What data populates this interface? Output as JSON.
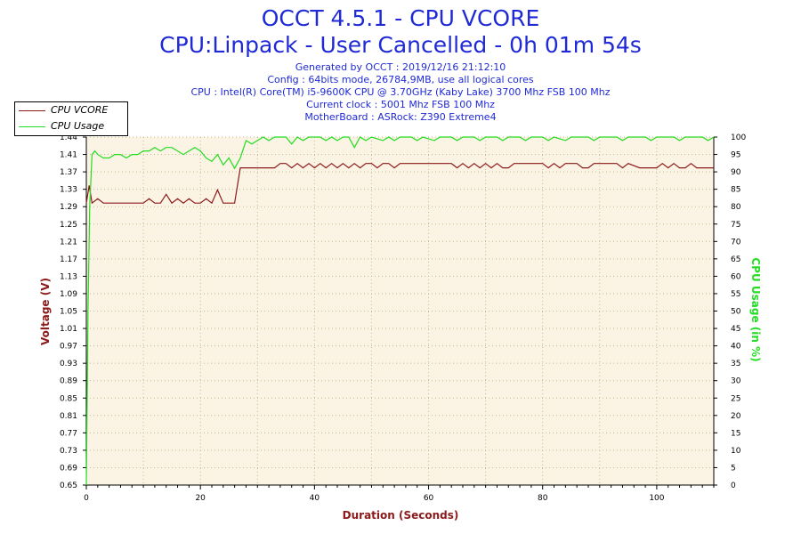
{
  "header": {
    "title": "OCCT 4.5.1 - CPU VCORE",
    "subtitle": "CPU:Linpack - User Cancelled - 0h 01m 54s",
    "info_lines": [
      "Generated by OCCT : 2019/12/16 21:12:10",
      "Config : 64bits mode, 26784,9MB, use all logical cores",
      "CPU : Intel(R) Core(TM) i5-9600K CPU @ 3.70GHz (Kaby Lake) 3700 Mhz FSB 100 Mhz",
      "Current clock : 5001 Mhz FSB 100 Mhz",
      "MotherBoard : ASRock: Z390 Extreme4"
    ]
  },
  "colors": {
    "vcore": "#8b1a1a",
    "usage": "#22dd22",
    "plot_bg": "#fbf4e4",
    "grid": "#c8b98f",
    "text": "#1f2ad6"
  },
  "chart_data": {
    "type": "line",
    "xlabel": "Duration (Seconds)",
    "ylabel": "Voltage (V)",
    "ylabel_right": "CPU Usage (in %)",
    "xlim": [
      0,
      110
    ],
    "ylim": [
      0.65,
      1.44
    ],
    "ylim_right": [
      0,
      100
    ],
    "x_ticks": [
      0,
      20,
      40,
      60,
      80,
      100
    ],
    "y_ticks": [
      "0.65",
      "0.69",
      "0.73",
      "0.77",
      "0.81",
      "0.85",
      "0.89",
      "0.93",
      "0.97",
      "1.01",
      "1.05",
      "1.09",
      "1.13",
      "1.17",
      "1.21",
      "1.25",
      "1.29",
      "1.33",
      "1.37",
      "1.41",
      "1.44"
    ],
    "y_right_ticks": [
      "0",
      "5",
      "10",
      "15",
      "20",
      "25",
      "30",
      "35",
      "40",
      "45",
      "50",
      "55",
      "60",
      "65",
      "70",
      "75",
      "80",
      "85",
      "90",
      "95",
      "100"
    ],
    "grid": true,
    "legend_position": "top-left",
    "series": [
      {
        "name": "CPU VCORE",
        "axis": "left",
        "points": [
          [
            0,
            1.29
          ],
          [
            0.5,
            1.33
          ],
          [
            1,
            1.29
          ],
          [
            2,
            1.3
          ],
          [
            3,
            1.29
          ],
          [
            10,
            1.29
          ],
          [
            11,
            1.3
          ],
          [
            12,
            1.29
          ],
          [
            13,
            1.29
          ],
          [
            14,
            1.31
          ],
          [
            15,
            1.29
          ],
          [
            16,
            1.3
          ],
          [
            17,
            1.29
          ],
          [
            18,
            1.3
          ],
          [
            19,
            1.29
          ],
          [
            20,
            1.29
          ],
          [
            21,
            1.3
          ],
          [
            22,
            1.29
          ],
          [
            23,
            1.32
          ],
          [
            24,
            1.29
          ],
          [
            26,
            1.29
          ],
          [
            27,
            1.37
          ],
          [
            33,
            1.37
          ],
          [
            34,
            1.38
          ],
          [
            35,
            1.38
          ],
          [
            36,
            1.37
          ],
          [
            37,
            1.38
          ],
          [
            38,
            1.37
          ],
          [
            39,
            1.38
          ],
          [
            40,
            1.37
          ],
          [
            41,
            1.38
          ],
          [
            42,
            1.37
          ],
          [
            43,
            1.38
          ],
          [
            44,
            1.37
          ],
          [
            45,
            1.38
          ],
          [
            46,
            1.37
          ],
          [
            47,
            1.38
          ],
          [
            48,
            1.37
          ],
          [
            49,
            1.38
          ],
          [
            50,
            1.38
          ],
          [
            51,
            1.37
          ],
          [
            52,
            1.38
          ],
          [
            53,
            1.38
          ],
          [
            54,
            1.37
          ],
          [
            55,
            1.38
          ],
          [
            64,
            1.38
          ],
          [
            65,
            1.37
          ],
          [
            66,
            1.38
          ],
          [
            67,
            1.37
          ],
          [
            68,
            1.38
          ],
          [
            69,
            1.37
          ],
          [
            70,
            1.38
          ],
          [
            71,
            1.37
          ],
          [
            72,
            1.38
          ],
          [
            73,
            1.37
          ],
          [
            74,
            1.37
          ],
          [
            75,
            1.38
          ],
          [
            80,
            1.38
          ],
          [
            81,
            1.37
          ],
          [
            82,
            1.38
          ],
          [
            83,
            1.37
          ],
          [
            84,
            1.38
          ],
          [
            86,
            1.38
          ],
          [
            87,
            1.37
          ],
          [
            88,
            1.37
          ],
          [
            89,
            1.38
          ],
          [
            93,
            1.38
          ],
          [
            94,
            1.37
          ],
          [
            95,
            1.38
          ],
          [
            97,
            1.37
          ],
          [
            100,
            1.37
          ],
          [
            101,
            1.38
          ],
          [
            102,
            1.37
          ],
          [
            103,
            1.38
          ],
          [
            104,
            1.37
          ],
          [
            105,
            1.37
          ],
          [
            106,
            1.38
          ],
          [
            107,
            1.37
          ],
          [
            110,
            1.37
          ]
        ]
      },
      {
        "name": "CPU Usage",
        "axis": "right",
        "points": [
          [
            0,
            0
          ],
          [
            0.3,
            50
          ],
          [
            0.6,
            80
          ],
          [
            1,
            95
          ],
          [
            1.5,
            96
          ],
          [
            2,
            95
          ],
          [
            3,
            94
          ],
          [
            4,
            94
          ],
          [
            5,
            95
          ],
          [
            6,
            95
          ],
          [
            7,
            94
          ],
          [
            8,
            95
          ],
          [
            9,
            95
          ],
          [
            10,
            96
          ],
          [
            11,
            96
          ],
          [
            12,
            97
          ],
          [
            13,
            96
          ],
          [
            14,
            97
          ],
          [
            15,
            97
          ],
          [
            16,
            96
          ],
          [
            17,
            95
          ],
          [
            18,
            96
          ],
          [
            19,
            97
          ],
          [
            20,
            96
          ],
          [
            21,
            94
          ],
          [
            22,
            93
          ],
          [
            23,
            95
          ],
          [
            24,
            92
          ],
          [
            25,
            94
          ],
          [
            26,
            91
          ],
          [
            27,
            94
          ],
          [
            28,
            99
          ],
          [
            29,
            98
          ],
          [
            30,
            99
          ],
          [
            31,
            100
          ],
          [
            32,
            99
          ],
          [
            33,
            100
          ],
          [
            35,
            100
          ],
          [
            36,
            98
          ],
          [
            37,
            100
          ],
          [
            38,
            99
          ],
          [
            39,
            100
          ],
          [
            41,
            100
          ],
          [
            42,
            99
          ],
          [
            43,
            100
          ],
          [
            44,
            99
          ],
          [
            45,
            100
          ],
          [
            46,
            100
          ],
          [
            47,
            97
          ],
          [
            48,
            100
          ],
          [
            49,
            99
          ],
          [
            50,
            100
          ],
          [
            52,
            99
          ],
          [
            53,
            100
          ],
          [
            54,
            99
          ],
          [
            55,
            100
          ],
          [
            57,
            100
          ],
          [
            58,
            99
          ],
          [
            59,
            100
          ],
          [
            61,
            99
          ],
          [
            62,
            100
          ],
          [
            64,
            100
          ],
          [
            65,
            99
          ],
          [
            66,
            100
          ],
          [
            68,
            100
          ],
          [
            69,
            99
          ],
          [
            70,
            100
          ],
          [
            72,
            100
          ],
          [
            73,
            99
          ],
          [
            74,
            100
          ],
          [
            76,
            100
          ],
          [
            77,
            99
          ],
          [
            78,
            100
          ],
          [
            80,
            100
          ],
          [
            81,
            99
          ],
          [
            82,
            100
          ],
          [
            84,
            99
          ],
          [
            85,
            100
          ],
          [
            88,
            100
          ],
          [
            89,
            99
          ],
          [
            90,
            100
          ],
          [
            93,
            100
          ],
          [
            94,
            99
          ],
          [
            95,
            100
          ],
          [
            98,
            100
          ],
          [
            99,
            99
          ],
          [
            100,
            100
          ],
          [
            103,
            100
          ],
          [
            104,
            99
          ],
          [
            105,
            100
          ],
          [
            108,
            100
          ],
          [
            109,
            99
          ],
          [
            110,
            100
          ]
        ]
      }
    ]
  }
}
